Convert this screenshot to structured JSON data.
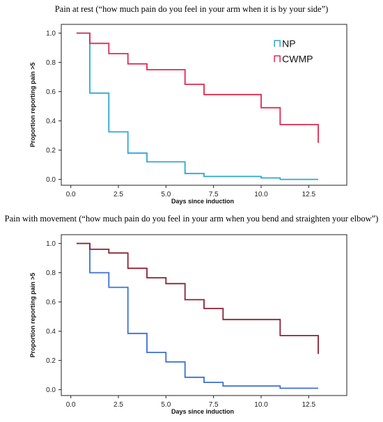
{
  "charts": [
    {
      "caption": "Pain at rest (“how much pain do you feel in your arm when it is by your side”)",
      "ylabel": "Proportion reporting pain >5",
      "xlabel": "Days since induction"
    },
    {
      "caption": "Pain with movement (“how much pain do you feel in your arm when you bend and straighten your elbow”)",
      "ylabel": "Proportion reporting pain >5",
      "xlabel": "Days since induction"
    }
  ],
  "chart_data": [
    {
      "type": "line",
      "step": true,
      "title": "Pain at rest (“how much pain do you feel in your arm when it is by your side”)",
      "xlabel": "Days since induction",
      "ylabel": "Proportion reporting pain >5",
      "xlim": [
        -0.5,
        14.5
      ],
      "ylim": [
        -0.04,
        1.06
      ],
      "xticks": [
        "0.0",
        "2.5",
        "5.0",
        "7.5",
        "10.0",
        "12.5"
      ],
      "yticks": [
        "0.0",
        "0.2",
        "0.4",
        "0.6",
        "0.8",
        "1.0"
      ],
      "grid": false,
      "legend_position": "top-right",
      "series": [
        {
          "name": "NP",
          "color": "#2aa7d8",
          "points": [
            [
              0.3,
              1.0
            ],
            [
              1,
              1.0
            ],
            [
              1,
              0.59
            ],
            [
              2,
              0.59
            ],
            [
              2,
              0.325
            ],
            [
              3,
              0.325
            ],
            [
              3,
              0.18
            ],
            [
              4,
              0.18
            ],
            [
              4,
              0.12
            ],
            [
              6,
              0.12
            ],
            [
              6,
              0.04
            ],
            [
              7,
              0.04
            ],
            [
              7,
              0.02
            ],
            [
              10,
              0.02
            ],
            [
              10,
              0.01
            ],
            [
              11,
              0.01
            ],
            [
              11,
              0.0
            ],
            [
              13,
              0.0
            ]
          ]
        },
        {
          "name": "CWMP",
          "color": "#e0284f",
          "points": [
            [
              0.3,
              1.0
            ],
            [
              1,
              1.0
            ],
            [
              1,
              0.93
            ],
            [
              2,
              0.93
            ],
            [
              2,
              0.86
            ],
            [
              3,
              0.86
            ],
            [
              3,
              0.79
            ],
            [
              4,
              0.79
            ],
            [
              4,
              0.75
            ],
            [
              6,
              0.75
            ],
            [
              6,
              0.65
            ],
            [
              7,
              0.65
            ],
            [
              7,
              0.58
            ],
            [
              10,
              0.58
            ],
            [
              10,
              0.49
            ],
            [
              11,
              0.49
            ],
            [
              11,
              0.375
            ],
            [
              13,
              0.375
            ],
            [
              13,
              0.25
            ]
          ]
        }
      ]
    },
    {
      "type": "line",
      "step": true,
      "title": "Pain with movement (“how much pain do you feel in your arm when you bend and straighten your elbow”)",
      "xlabel": "Days since induction",
      "ylabel": "Proportion reporting pain >5",
      "xlim": [
        -0.5,
        14.5
      ],
      "ylim": [
        -0.04,
        1.06
      ],
      "xticks": [
        "0.0",
        "2.5",
        "5.0",
        "7.5",
        "10.0",
        "12.5"
      ],
      "yticks": [
        "0.0",
        "0.2",
        "0.4",
        "0.6",
        "0.8",
        "1.0"
      ],
      "grid": false,
      "series": [
        {
          "color": "#3a6fd8",
          "points": [
            [
              0.3,
              1.0
            ],
            [
              1,
              1.0
            ],
            [
              1,
              0.8
            ],
            [
              2,
              0.8
            ],
            [
              2,
              0.7
            ],
            [
              3,
              0.7
            ],
            [
              3,
              0.385
            ],
            [
              4,
              0.385
            ],
            [
              4,
              0.255
            ],
            [
              5,
              0.255
            ],
            [
              5,
              0.19
            ],
            [
              6,
              0.19
            ],
            [
              6,
              0.085
            ],
            [
              7,
              0.085
            ],
            [
              7,
              0.05
            ],
            [
              8,
              0.05
            ],
            [
              8,
              0.025
            ],
            [
              11,
              0.025
            ],
            [
              11,
              0.01
            ],
            [
              13,
              0.01
            ]
          ]
        },
        {
          "color": "#8b2232",
          "points": [
            [
              0.3,
              1.0
            ],
            [
              1,
              1.0
            ],
            [
              1,
              0.96
            ],
            [
              2,
              0.96
            ],
            [
              2,
              0.935
            ],
            [
              3,
              0.935
            ],
            [
              3,
              0.83
            ],
            [
              4,
              0.83
            ],
            [
              4,
              0.765
            ],
            [
              5,
              0.765
            ],
            [
              5,
              0.725
            ],
            [
              6,
              0.725
            ],
            [
              6,
              0.615
            ],
            [
              7,
              0.615
            ],
            [
              7,
              0.555
            ],
            [
              8,
              0.555
            ],
            [
              8,
              0.48
            ],
            [
              11,
              0.48
            ],
            [
              11,
              0.37
            ],
            [
              13,
              0.37
            ],
            [
              13,
              0.245
            ]
          ]
        }
      ]
    }
  ]
}
